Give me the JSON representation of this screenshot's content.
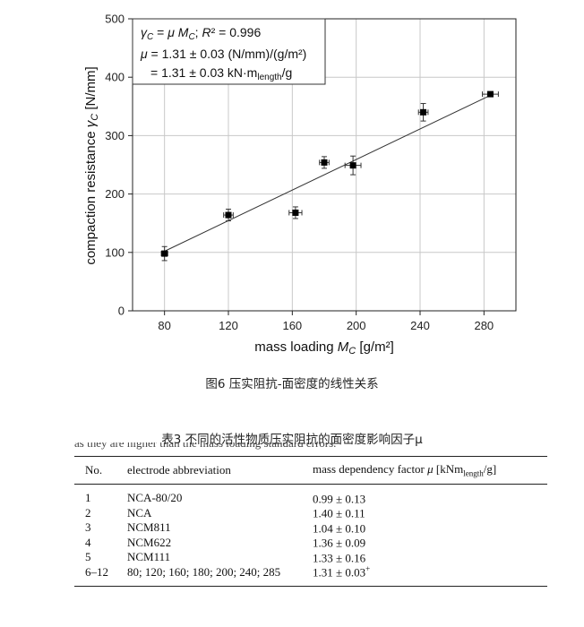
{
  "chart_data": {
    "type": "scatter",
    "xlabel_prefix": "mass loading ",
    "xlabel_var": "M",
    "xlabel_sub": "C",
    "xlabel_unit": " [g/m²]",
    "ylabel_prefix": "compaction resistance ",
    "ylabel_var": "γ",
    "ylabel_sub": "C",
    "ylabel_unit": " [N/mm]",
    "xlim": [
      60,
      300
    ],
    "ylim": [
      0,
      500
    ],
    "xticks": [
      80,
      120,
      160,
      200,
      240,
      280
    ],
    "yticks": [
      0,
      100,
      200,
      300,
      400,
      500
    ],
    "grid": true,
    "points": [
      {
        "x": 80,
        "y": 98,
        "yerr": 12,
        "xerr": 2
      },
      {
        "x": 120,
        "y": 164,
        "yerr": 10,
        "xerr": 3
      },
      {
        "x": 162,
        "y": 168,
        "yerr": 10,
        "xerr": 4
      },
      {
        "x": 180,
        "y": 254,
        "yerr": 10,
        "xerr": 3
      },
      {
        "x": 198,
        "y": 249,
        "yerr": 16,
        "xerr": 5
      },
      {
        "x": 242,
        "y": 340,
        "yerr": 15,
        "xerr": 3
      },
      {
        "x": 284,
        "y": 371,
        "yerr": 4,
        "xerr": 5
      }
    ],
    "fit_line": {
      "x": [
        80,
        284
      ],
      "y": [
        102,
        369
      ]
    },
    "legend_lines": [
      "γC = μ MC; R² = 0.996",
      "μ = 1.31 ± 0.03 (N/mm)/(g/m²)",
      "= 1.31 ± 0.03 kN·mlength/g"
    ],
    "legend_placement": "top-left"
  },
  "figure_caption": "图6 压实阻抗-面密度的线性关系",
  "table_caption": "表3 不同的活性物质压实阻抗的面密度影响因子μ",
  "cut_text": "as they are higher than the mass loading standard errors.",
  "table": {
    "headers": {
      "no": "No.",
      "abbr": "electrode abbreviation",
      "factor_prefix": "mass dependency factor ",
      "factor_var": "μ",
      "factor_unit_open": " [kNm",
      "factor_unit_sub": "length",
      "factor_unit_close": "/g]"
    },
    "rows": [
      {
        "no": "1",
        "abbr": "NCA-80/20",
        "factor": "0.99 ± 0.13",
        "mark": ""
      },
      {
        "no": "2",
        "abbr": "NCA",
        "factor": "1.40 ± 0.11",
        "mark": ""
      },
      {
        "no": "3",
        "abbr": "NCM811",
        "factor": "1.04 ± 0.10",
        "mark": ""
      },
      {
        "no": "4",
        "abbr": "NCM622",
        "factor": "1.36 ± 0.09",
        "mark": ""
      },
      {
        "no": "5",
        "abbr": "NCM111",
        "factor": "1.33 ± 0.16",
        "mark": ""
      },
      {
        "no": "6–12",
        "abbr": "80; 120; 160; 180; 200; 240; 285",
        "factor": "1.31 ± 0.03",
        "mark": "+"
      }
    ]
  }
}
